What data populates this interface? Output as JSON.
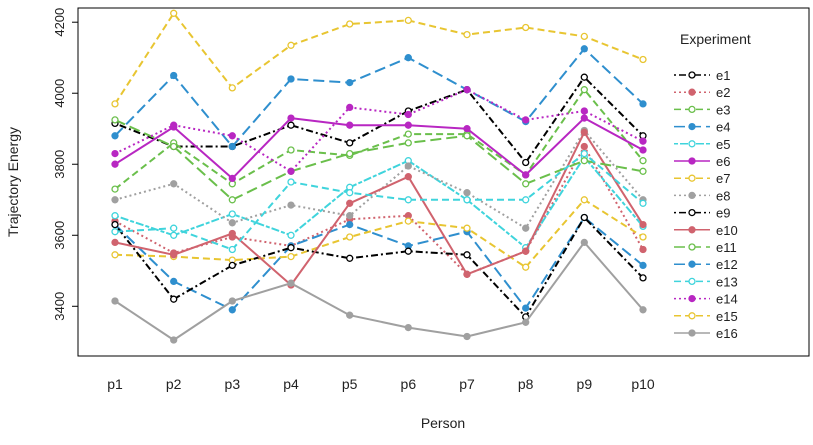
{
  "chart_data": {
    "type": "line",
    "xlabel": "Person",
    "ylabel": "Trajectory Energy",
    "legend_title": "Experiment",
    "legend_position": "right",
    "grid": false,
    "categories": [
      "p1",
      "p2",
      "p3",
      "p4",
      "p5",
      "p6",
      "p7",
      "p8",
      "p9",
      "p10"
    ],
    "ylim": [
      3260,
      4240
    ],
    "yticks": [
      3400,
      3600,
      3800,
      4000,
      4200
    ],
    "series": [
      {
        "name": "e1",
        "color": "#000000",
        "dash": "dotdash",
        "marker": "open",
        "values": [
          3915,
          3850,
          3850,
          3910,
          3860,
          3950,
          4010,
          3805,
          4045,
          3880
        ]
      },
      {
        "name": "e2",
        "color": "#d0636e",
        "dash": "dotted",
        "marker": "filled",
        "values": [
          3640,
          3550,
          3595,
          3570,
          3645,
          3655,
          3490,
          3555,
          3850,
          3560
        ]
      },
      {
        "name": "e3",
        "color": "#6abf4b",
        "dash": "dashed",
        "marker": "open",
        "values": [
          3730,
          3860,
          3745,
          3840,
          3825,
          3885,
          3885,
          3770,
          4010,
          3810
        ]
      },
      {
        "name": "e4",
        "color": "#2f8fce",
        "dash": "longdash",
        "marker": "filled",
        "values": [
          3630,
          3470,
          3390,
          3570,
          3630,
          3570,
          3610,
          3395,
          3650,
          3515
        ]
      },
      {
        "name": "e5",
        "color": "#3fd4dc",
        "dash": "twodash",
        "marker": "open",
        "values": [
          3655,
          3600,
          3660,
          3600,
          3735,
          3810,
          3700,
          3565,
          3820,
          3625
        ]
      },
      {
        "name": "e6",
        "color": "#b827c2",
        "dash": "solid",
        "marker": "filled",
        "values": [
          3800,
          3905,
          3760,
          3930,
          3910,
          3910,
          3900,
          3770,
          3930,
          3840
        ]
      },
      {
        "name": "e7",
        "color": "#e8c531",
        "dash": "dashed",
        "marker": "open",
        "values": [
          3545,
          3540,
          3530,
          3540,
          3595,
          3640,
          3620,
          3510,
          3700,
          3595
        ]
      },
      {
        "name": "e8",
        "color": "#a0a0a0",
        "dash": "dotted",
        "marker": "filled",
        "values": [
          3700,
          3745,
          3635,
          3685,
          3655,
          3795,
          3720,
          3620,
          3895,
          3700
        ]
      },
      {
        "name": "e9",
        "color": "#000000",
        "dash": "dotdash",
        "marker": "open",
        "values": [
          3630,
          3420,
          3515,
          3565,
          3535,
          3555,
          3545,
          3370,
          3650,
          3480
        ]
      },
      {
        "name": "e10",
        "color": "#d0636e",
        "dash": "solid",
        "marker": "filled",
        "values": [
          3580,
          3545,
          3605,
          3460,
          3690,
          3765,
          3490,
          3555,
          3890,
          3630
        ]
      },
      {
        "name": "e11",
        "color": "#6abf4b",
        "dash": "longdash",
        "marker": "open",
        "values": [
          3925,
          3850,
          3700,
          3780,
          3830,
          3860,
          3880,
          3745,
          3810,
          3780
        ]
      },
      {
        "name": "e12",
        "color": "#2f8fce",
        "dash": "longdash",
        "marker": "filled",
        "values": [
          3880,
          4050,
          3850,
          4040,
          4030,
          4100,
          4010,
          3920,
          4125,
          3970
        ]
      },
      {
        "name": "e13",
        "color": "#3fd4dc",
        "dash": "dashed",
        "marker": "open",
        "values": [
          3610,
          3620,
          3560,
          3750,
          3720,
          3700,
          3700,
          3700,
          3830,
          3690
        ]
      },
      {
        "name": "e14",
        "color": "#b827c2",
        "dash": "dotted",
        "marker": "filled",
        "values": [
          3830,
          3910,
          3880,
          3780,
          3960,
          3940,
          4010,
          3925,
          3950,
          3865
        ]
      },
      {
        "name": "e15",
        "color": "#e8c531",
        "dash": "dashed",
        "marker": "open",
        "values": [
          3970,
          4225,
          4015,
          4135,
          4195,
          4205,
          4165,
          4185,
          4160,
          4095
        ]
      },
      {
        "name": "e16",
        "color": "#a0a0a0",
        "dash": "solid",
        "marker": "filled",
        "values": [
          3415,
          3305,
          3415,
          3465,
          3375,
          3340,
          3315,
          3355,
          3580,
          3390
        ]
      }
    ]
  }
}
